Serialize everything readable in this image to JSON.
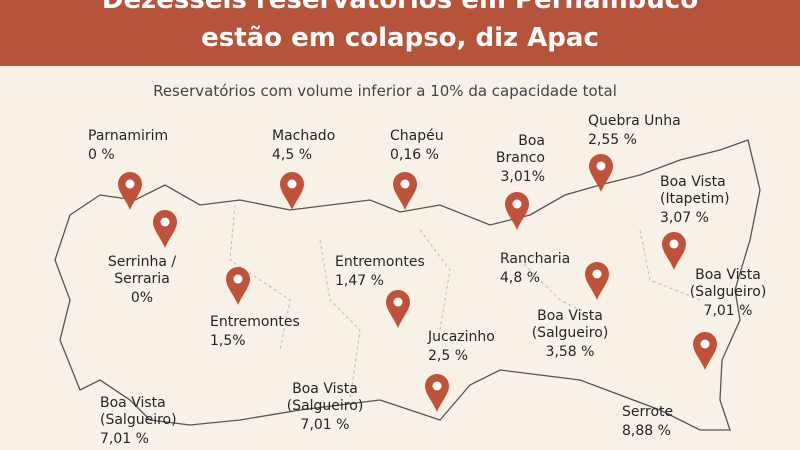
{
  "header": {
    "title": [
      "Dezesseis reservatórios em Pernambuco",
      "estão em colapso, diz Apac"
    ],
    "subtitle": "Reservatórios com volume inferior a 10% da capacidade total"
  },
  "reservoirs": [
    {
      "name": [
        "Parnamirim"
      ],
      "volume": "0 %"
    },
    {
      "name": [
        "Machado"
      ],
      "volume": "4,5 %"
    },
    {
      "name": [
        "Chapéu"
      ],
      "volume": "0,16 %"
    },
    {
      "name": [
        "Boa",
        "Branco"
      ],
      "volume": "3,01%"
    },
    {
      "name": [
        "Quebra Unha"
      ],
      "volume": "2,55 %"
    },
    {
      "name": [
        "Boa Vista",
        "(Itapetim)"
      ],
      "volume": "3,07 %"
    },
    {
      "name": [
        "Serrinha /",
        "Serraria"
      ],
      "volume": "0%"
    },
    {
      "name": [
        "Entremontes"
      ],
      "volume": "1,5%"
    },
    {
      "name": [
        "Entremontes"
      ],
      "volume": "1,47 %"
    },
    {
      "name": [
        "Rancharia"
      ],
      "volume": "4,8 %"
    },
    {
      "name": [
        "Boa Vista",
        "(Salgueiro)"
      ],
      "volume": "7,01 %"
    },
    {
      "name": [
        "Boa Vista",
        "(Salgueiro)"
      ],
      "volume": "3,58 %"
    },
    {
      "name": [
        "Jucazinho"
      ],
      "volume": "2,5 %"
    },
    {
      "name": [
        "Boa Vista",
        "(Salgueiro)"
      ],
      "volume": "7,01 %"
    },
    {
      "name": [
        "Boa Vista",
        "(Salgueiro)"
      ],
      "volume": "7,01 %"
    },
    {
      "name": [
        "Serrote"
      ],
      "volume": "8,88 %"
    }
  ]
}
